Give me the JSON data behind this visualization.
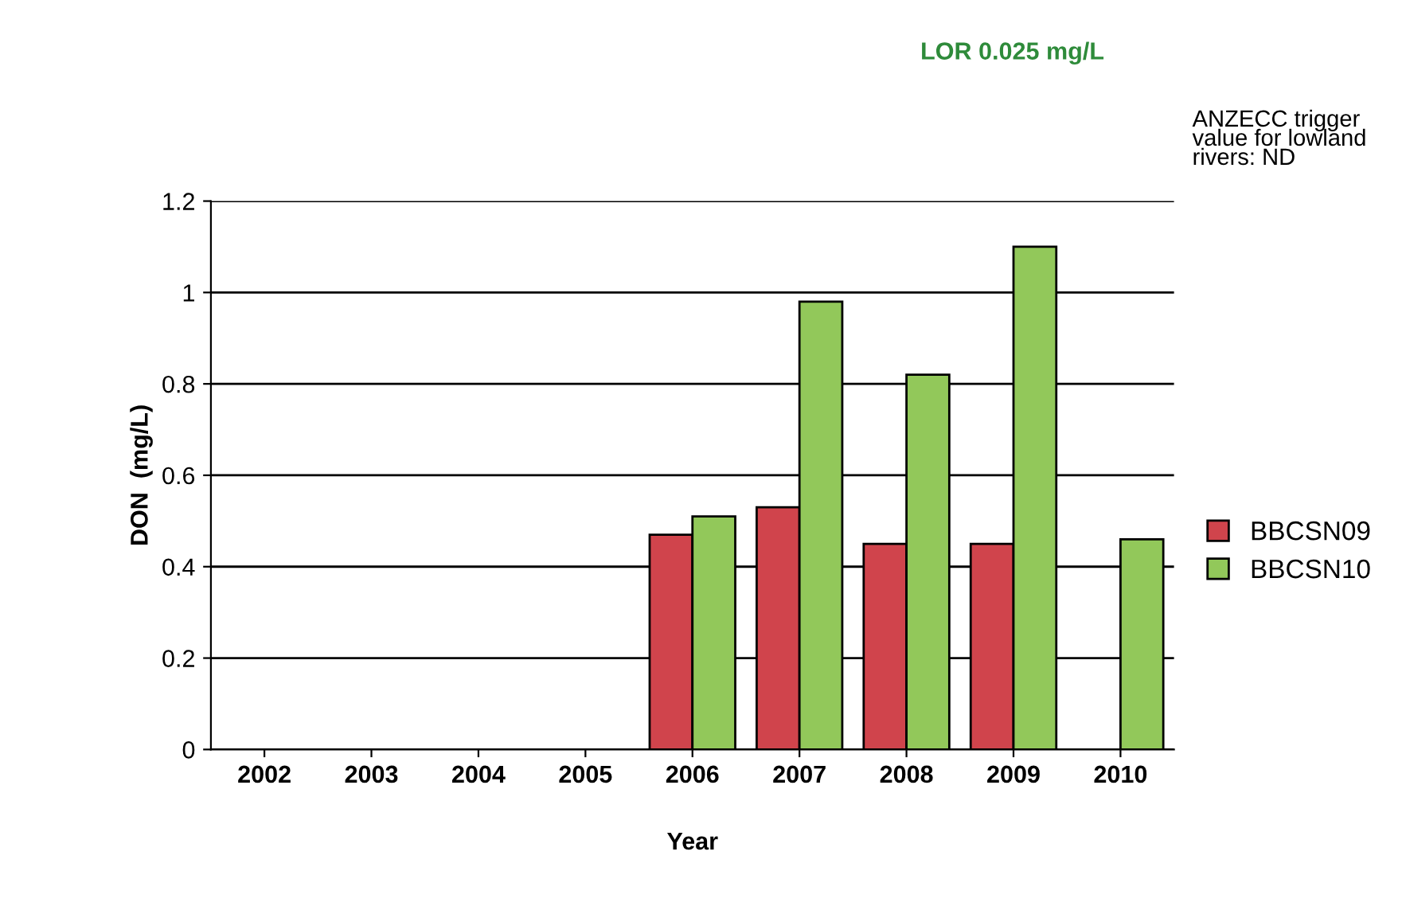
{
  "chart_data": {
    "type": "bar",
    "xlabel": "Year",
    "ylabel": "DON  (mg/L)",
    "categories": [
      "2002",
      "2003",
      "2004",
      "2005",
      "2006",
      "2007",
      "2008",
      "2009",
      "2010"
    ],
    "series": [
      {
        "name": "BBCSN09",
        "color": "#d0444c",
        "values": [
          null,
          null,
          null,
          null,
          0.47,
          0.53,
          0.45,
          0.45,
          null
        ]
      },
      {
        "name": "BBCSN10",
        "color": "#92c85a",
        "values": [
          null,
          null,
          null,
          null,
          0.51,
          0.98,
          0.82,
          1.1,
          0.46
        ]
      }
    ],
    "ylim": [
      0,
      1.2
    ],
    "yticks": [
      0,
      0.2,
      0.4,
      0.6,
      0.8,
      1,
      1.2
    ],
    "grid": "y",
    "legend": "right",
    "annotations": [
      "LOR 0.025 mg/L",
      "ANZECC trigger value for lowland rivers: ND"
    ]
  }
}
